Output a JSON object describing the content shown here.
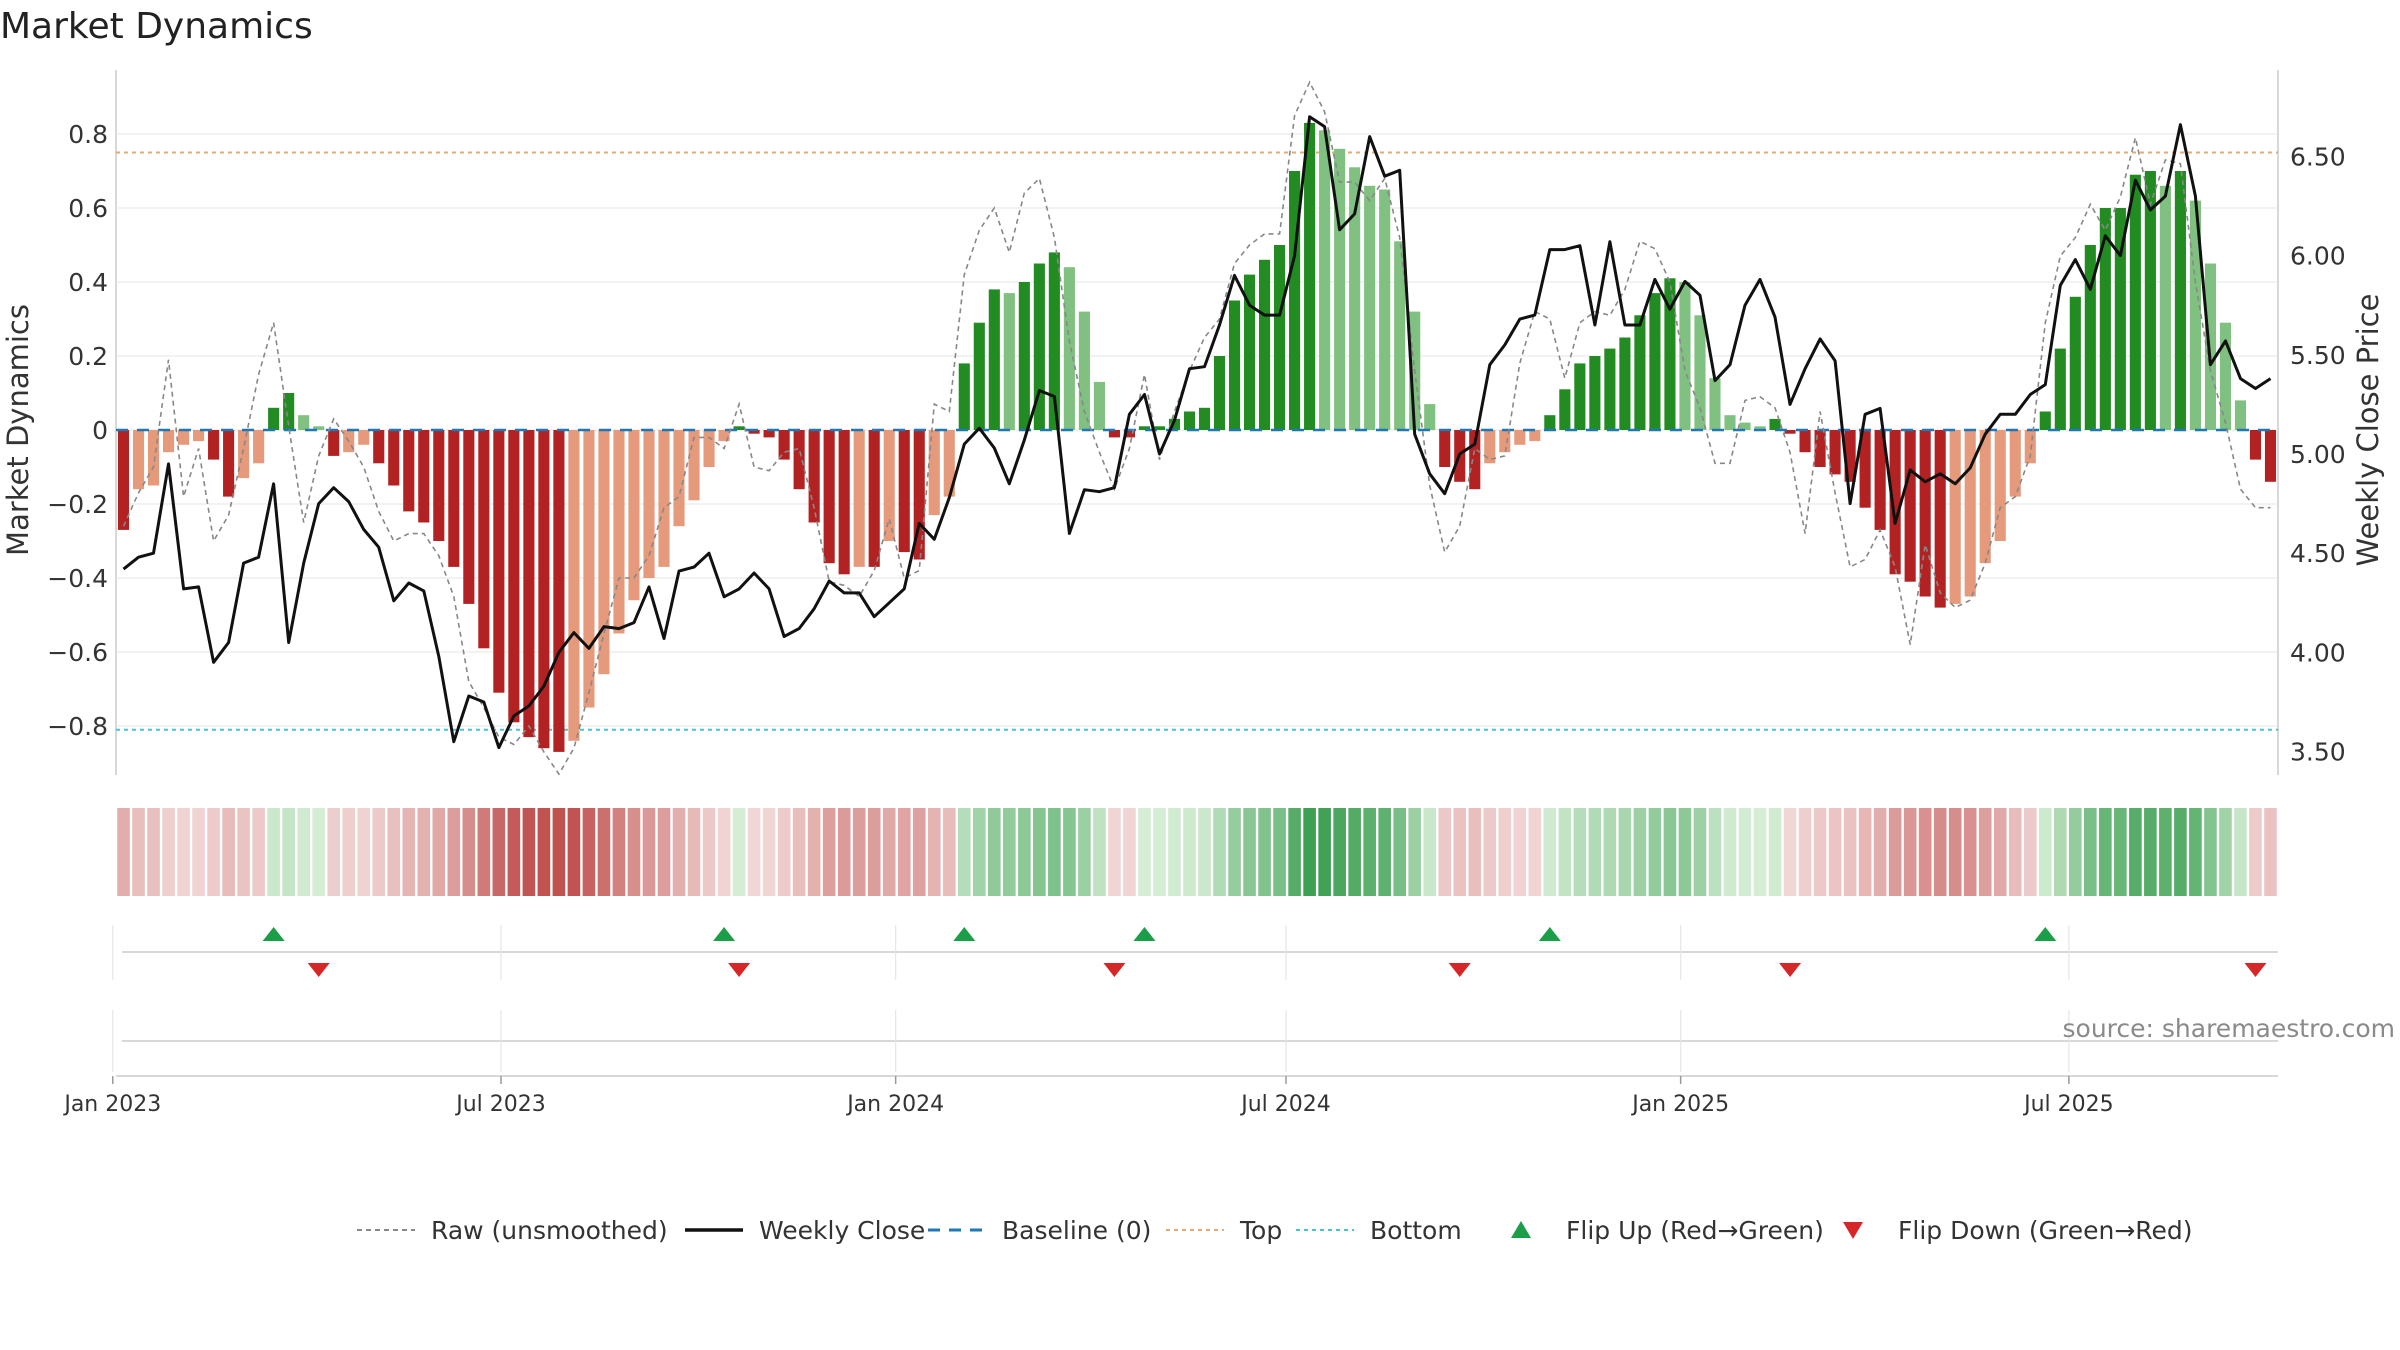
{
  "chart_data": {
    "type": "bar",
    "title": "Market Dynamics",
    "ylabel": "Market Dynamics",
    "y2label": "Weekly Close Price",
    "ylim": [
      -0.93,
      0.95
    ],
    "y2lim": [
      3.4,
      6.86
    ],
    "yticks": [
      "0.8",
      "0.6",
      "0.4",
      "0.2",
      "0",
      "−0.2",
      "−0.4",
      "−0.6",
      "−0.8"
    ],
    "y2ticks": [
      "6.50",
      "6.00",
      "5.50",
      "5.00",
      "4.50",
      "4.00",
      "3.50"
    ],
    "xticks": [
      "Jan 2023",
      "Jul 2023",
      "Jan 2024",
      "Jul 2024",
      "Jan 2025",
      "Jul 2025"
    ],
    "x_start": "2023-01-06",
    "x_step_days": 7,
    "top_level": 0.75,
    "bottom_level": -0.81,
    "baseline": 0,
    "colors": {
      "strong_up": "#228b22",
      "weak_up": "#80c080",
      "strong_down": "#b22222",
      "weak_down": "#e59a7c",
      "close": "#111111",
      "raw": "#888888",
      "baseline": "#1f77b4",
      "top": "#e8a870",
      "bottom": "#46c3d6",
      "flip_up": "#1a9e48",
      "flip_down": "#d62728"
    },
    "series": [
      {
        "name": "Market Dynamics",
        "values": [
          -0.27,
          -0.16,
          -0.15,
          -0.06,
          -0.04,
          -0.03,
          -0.08,
          -0.18,
          -0.13,
          -0.09,
          0.06,
          0.1,
          0.04,
          0.01,
          -0.07,
          -0.06,
          -0.04,
          -0.09,
          -0.15,
          -0.22,
          -0.25,
          -0.3,
          -0.37,
          -0.47,
          -0.59,
          -0.71,
          -0.79,
          -0.83,
          -0.86,
          -0.87,
          -0.84,
          -0.75,
          -0.66,
          -0.55,
          -0.46,
          -0.4,
          -0.37,
          -0.26,
          -0.19,
          -0.1,
          -0.03,
          0.01,
          -0.01,
          -0.02,
          -0.08,
          -0.16,
          -0.25,
          -0.36,
          -0.39,
          -0.37,
          -0.37,
          -0.3,
          -0.33,
          -0.35,
          -0.23,
          -0.18,
          0.18,
          0.29,
          0.38,
          0.37,
          0.4,
          0.45,
          0.48,
          0.44,
          0.32,
          0.13,
          -0.02,
          -0.02,
          0.01,
          0.01,
          0.03,
          0.05,
          0.06,
          0.2,
          0.35,
          0.42,
          0.46,
          0.5,
          0.7,
          0.83,
          0.81,
          0.76,
          0.71,
          0.66,
          0.65,
          0.51,
          0.32,
          0.07,
          -0.1,
          -0.14,
          -0.16,
          -0.09,
          -0.06,
          -0.04,
          -0.03,
          0.04,
          0.11,
          0.18,
          0.2,
          0.22,
          0.25,
          0.31,
          0.37,
          0.41,
          0.4,
          0.31,
          0.14,
          0.04,
          0.02,
          0.01,
          0.03,
          -0.01,
          -0.06,
          -0.1,
          -0.12,
          -0.14,
          -0.21,
          -0.27,
          -0.39,
          -0.41,
          -0.45,
          -0.48,
          -0.47,
          -0.45,
          -0.36,
          -0.3,
          -0.18,
          -0.09,
          0.05,
          0.22,
          0.36,
          0.5,
          0.6,
          0.6,
          0.69,
          0.7,
          0.66,
          0.7,
          0.62,
          0.45,
          0.29,
          0.08,
          -0.08,
          -0.14
        ]
      },
      {
        "name": "Weekly Close",
        "values": [
          4.42,
          4.48,
          4.5,
          4.95,
          4.32,
          4.33,
          3.95,
          4.05,
          4.45,
          4.48,
          4.85,
          4.05,
          4.45,
          4.75,
          4.83,
          4.76,
          4.62,
          4.53,
          4.26,
          4.35,
          4.31,
          3.98,
          3.55,
          3.78,
          3.75,
          3.52,
          3.68,
          3.73,
          3.83,
          4.0,
          4.1,
          4.02,
          4.13,
          4.12,
          4.15,
          4.33,
          4.07,
          4.41,
          4.43,
          4.5,
          4.28,
          4.32,
          4.4,
          4.32,
          4.08,
          4.12,
          4.22,
          4.36,
          4.3,
          4.3,
          4.18,
          4.25,
          4.32,
          4.65,
          4.57,
          4.78,
          5.05,
          5.13,
          5.03,
          4.85,
          5.07,
          5.32,
          5.29,
          4.6,
          4.82,
          4.81,
          4.83,
          5.2,
          5.3,
          5.0,
          5.17,
          5.43,
          5.44,
          5.65,
          5.9,
          5.75,
          5.7,
          5.7,
          6.0,
          6.7,
          6.65,
          6.13,
          6.21,
          6.6,
          6.4,
          6.43,
          5.1,
          4.9,
          4.8,
          5.0,
          5.05,
          5.45,
          5.55,
          5.68,
          5.7,
          6.03,
          6.03,
          6.05,
          5.65,
          6.07,
          5.65,
          5.65,
          5.88,
          5.73,
          5.87,
          5.8,
          5.37,
          5.45,
          5.75,
          5.88,
          5.69,
          5.25,
          5.43,
          5.58,
          5.47,
          4.75,
          5.2,
          5.23,
          4.65,
          4.92,
          4.86,
          4.9,
          4.85,
          4.93,
          5.1,
          5.2,
          5.2,
          5.3,
          5.35,
          5.85,
          5.98,
          5.83,
          6.1,
          6.0,
          6.38,
          6.23,
          6.3,
          6.66,
          6.3,
          5.45,
          5.57,
          5.38,
          5.33,
          5.38
        ]
      },
      {
        "name": "Raw (unsmoothed)",
        "values": [
          -0.26,
          -0.17,
          -0.1,
          0.19,
          -0.18,
          -0.05,
          -0.3,
          -0.23,
          -0.05,
          0.15,
          0.29,
          0.01,
          -0.25,
          -0.07,
          0.03,
          -0.03,
          -0.1,
          -0.22,
          -0.3,
          -0.28,
          -0.28,
          -0.34,
          -0.45,
          -0.68,
          -0.75,
          -0.83,
          -0.85,
          -0.8,
          -0.87,
          -0.93,
          -0.86,
          -0.71,
          -0.55,
          -0.4,
          -0.4,
          -0.34,
          -0.21,
          -0.18,
          -0.02,
          -0.02,
          -0.05,
          0.07,
          -0.1,
          -0.11,
          -0.06,
          -0.05,
          -0.21,
          -0.41,
          -0.42,
          -0.45,
          -0.38,
          -0.24,
          -0.4,
          -0.38,
          0.07,
          0.05,
          0.42,
          0.54,
          0.6,
          0.48,
          0.64,
          0.68,
          0.52,
          0.24,
          0.05,
          -0.06,
          -0.16,
          -0.05,
          0.15,
          -0.08,
          0.05,
          0.16,
          0.25,
          0.3,
          0.45,
          0.5,
          0.53,
          0.53,
          0.85,
          0.94,
          0.86,
          0.67,
          0.67,
          0.62,
          0.68,
          0.52,
          0.16,
          -0.15,
          -0.33,
          -0.26,
          -0.05,
          -0.08,
          -0.07,
          0.18,
          0.32,
          0.3,
          0.14,
          0.29,
          0.32,
          0.31,
          0.38,
          0.51,
          0.49,
          0.4,
          0.16,
          0.06,
          -0.09,
          -0.09,
          0.08,
          0.09,
          0.06,
          -0.06,
          -0.28,
          0.05,
          -0.17,
          -0.37,
          -0.35,
          -0.27,
          -0.37,
          -0.58,
          -0.31,
          -0.44,
          -0.48,
          -0.46,
          -0.36,
          -0.21,
          -0.18,
          -0.07,
          0.29,
          0.47,
          0.52,
          0.61,
          0.54,
          0.63,
          0.79,
          0.61,
          0.73,
          0.72,
          0.4,
          0.16,
          0.02,
          -0.16,
          -0.21,
          -0.21
        ]
      }
    ],
    "flips_up": [
      10,
      40,
      56,
      68,
      95,
      128
    ],
    "flips_down": [
      13,
      41,
      66,
      89,
      111,
      142
    ],
    "legend": [
      "Raw (unsmoothed)",
      "Weekly Close",
      "Baseline (0)",
      "Top",
      "Bottom",
      "Flip Up (Red→Green)",
      "Flip Down (Green→Red)"
    ],
    "watermark": "source: sharemaestro.com"
  }
}
